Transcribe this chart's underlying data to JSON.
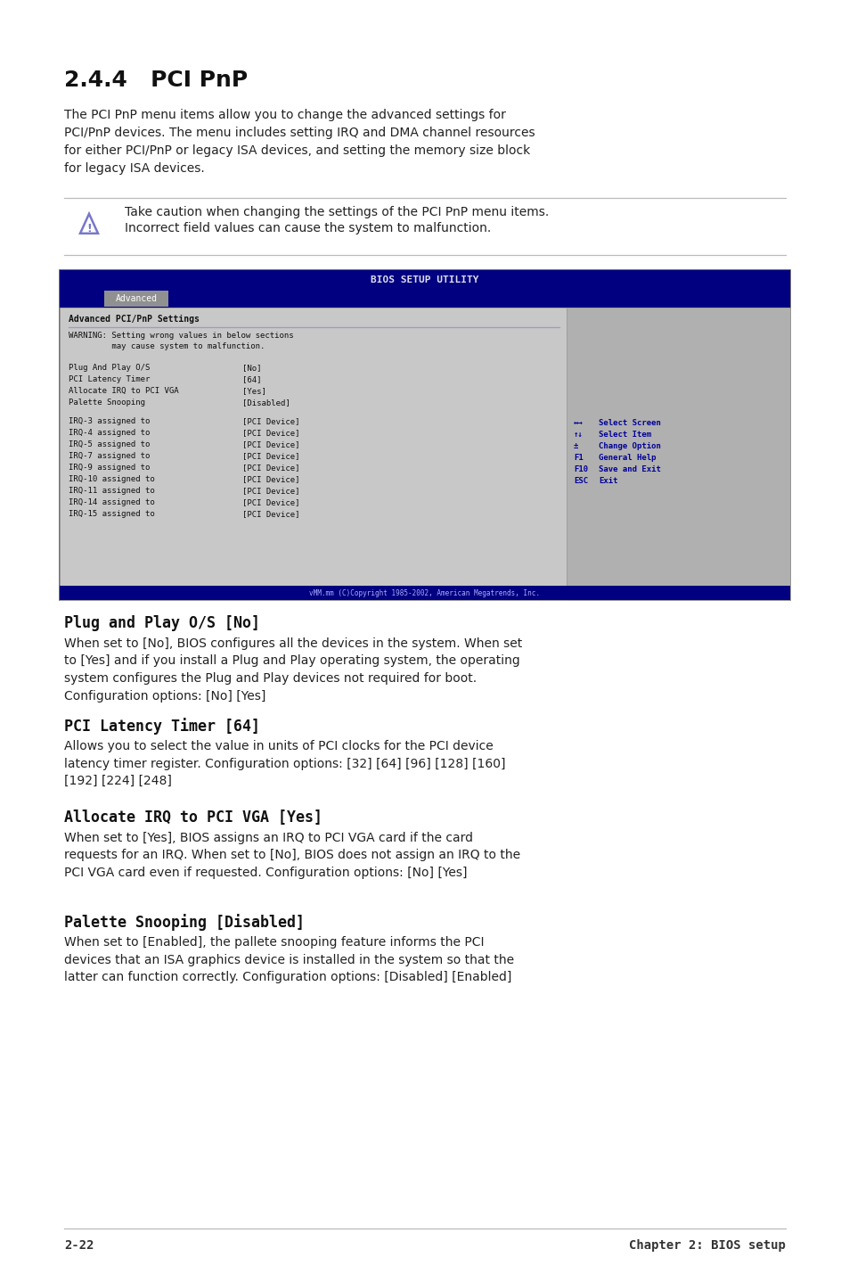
{
  "bg_color": "#ffffff",
  "lm": 0.075,
  "rm": 0.925,
  "title": "2.4.4   PCI PnP",
  "title_fs": 16,
  "intro_text": "The PCI PnP menu items allow you to change the advanced settings for\nPCI/PnP devices. The menu includes setting IRQ and DMA channel resources\nfor either PCI/PnP or legacy ISA devices, and setting the memory size block\nfor legacy ISA devices.",
  "caution_text_line1": "Take caution when changing the settings of the PCI PnP menu items.",
  "caution_text_line2": "Incorrect field values can cause the system to malfunction.",
  "bios_title": "BIOS SETUP UTILITY",
  "bios_tab": "Advanced",
  "bios_header": "Advanced PCI/PnP Settings",
  "bios_warning_line1": "WARNING: Setting wrong values in below sections",
  "bios_warning_line2": "         may cause system to malfunction.",
  "bios_items": [
    [
      "Plug And Play O/S",
      "[No]"
    ],
    [
      "PCI Latency Timer",
      "[64]"
    ],
    [
      "Allocate IRQ to PCI VGA",
      "[Yes]"
    ],
    [
      "Palette Snooping",
      "[Disabled]"
    ]
  ],
  "bios_irqs": [
    [
      "IRQ-3 assigned to",
      "[PCI Device]"
    ],
    [
      "IRQ-4 assigned to",
      "[PCI Device]"
    ],
    [
      "IRQ-5 assigned to",
      "[PCI Device]"
    ],
    [
      "IRQ-7 assigned to",
      "[PCI Device]"
    ],
    [
      "IRQ-9 assigned to",
      "[PCI Device]"
    ],
    [
      "IRQ-10 assigned to",
      "[PCI Device]"
    ],
    [
      "IRQ-11 assigned to",
      "[PCI Device]"
    ],
    [
      "IRQ-14 assigned to",
      "[PCI Device]"
    ],
    [
      "IRQ-15 assigned to",
      "[PCI Device]"
    ]
  ],
  "bios_legend": [
    [
      "↔→",
      "Select Screen"
    ],
    [
      "↑↓",
      "Select Item"
    ],
    [
      "±",
      "Change Option"
    ],
    [
      "F1",
      "General Help"
    ],
    [
      "F10",
      "Save and Exit"
    ],
    [
      "ESC",
      "Exit"
    ]
  ],
  "bios_footer": "vMM.mm (C)Copyright 1985-2002, American Megatrends, Inc.",
  "bios_dark": "#000080",
  "bios_gray": "#b8b8b8",
  "bios_lgray": "#c8c8c8",
  "bios_text": "#111111",
  "bios_legend_color": "#000099",
  "sections": [
    {
      "head": "Plug and Play O/S [No]",
      "body": "When set to [No], BIOS configures all the devices in the system. When set\nto [Yes] and if you install a Plug and Play operating system, the operating\nsystem configures the Plug and Play devices not required for boot.\nConfiguration options: [No] [Yes]"
    },
    {
      "head": "PCI Latency Timer [64]",
      "body": "Allows you to select the value in units of PCI clocks for the PCI device\nlatency timer register. Configuration options: [32] [64] [96] [128] [160]\n[192] [224] [248]"
    },
    {
      "head": "Allocate IRQ to PCI VGA [Yes]",
      "body": "When set to [Yes], BIOS assigns an IRQ to PCI VGA card if the card\nrequests for an IRQ. When set to [No], BIOS does not assign an IRQ to the\nPCI VGA card even if requested. Configuration options: [No] [Yes]"
    },
    {
      "head": "Palette Snooping [Disabled]",
      "body": "When set to [Enabled], the pallete snooping feature informs the PCI\ndevices that an ISA graphics device is installed in the system so that the\nlatter can function correctly. Configuration options: [Disabled] [Enabled]"
    }
  ],
  "footer_left": "2-22",
  "footer_right": "Chapter 2: BIOS setup"
}
